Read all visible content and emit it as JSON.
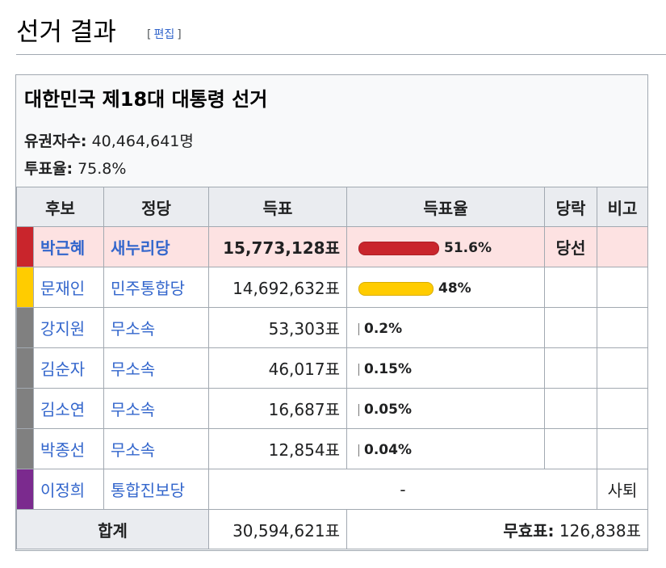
{
  "heading": {
    "title": "선거 결과",
    "edit_open": "[",
    "edit_label": "편집",
    "edit_close": "]"
  },
  "infobox": {
    "caption": "대한민국 제18대 대통령 선거",
    "eligible_label": "유권자수:",
    "eligible_value": "40,464,641명",
    "turnout_label": "투표율:",
    "turnout_value": "75.8%"
  },
  "table": {
    "headers": [
      "후보",
      "정당",
      "득표",
      "득표율",
      "당락",
      "비고"
    ],
    "rows": [
      {
        "color": "#c9252c",
        "candidate": "박근혜",
        "party": "새누리당",
        "votes": "15,773,128표",
        "pct": "51.6%",
        "share": 0.516,
        "bar_color": "#c9252c",
        "status": "당선",
        "note": "",
        "winner": true
      },
      {
        "color": "#ffcc00",
        "candidate": "문재인",
        "party": "민주통합당",
        "votes": "14,692,632표",
        "pct": "48%",
        "share": 0.48,
        "bar_color": "#ffcc00",
        "status": "",
        "note": "",
        "winner": false
      },
      {
        "color": "#808080",
        "candidate": "강지원",
        "party": "무소속",
        "votes": "53,303표",
        "pct": "0.2%",
        "share": 0.002,
        "bar_color": "#808080",
        "status": "",
        "note": "",
        "winner": false
      },
      {
        "color": "#808080",
        "candidate": "김순자",
        "party": "무소속",
        "votes": "46,017표",
        "pct": "0.15%",
        "share": 0.0015,
        "bar_color": "#808080",
        "status": "",
        "note": "",
        "winner": false
      },
      {
        "color": "#808080",
        "candidate": "김소연",
        "party": "무소속",
        "votes": "16,687표",
        "pct": "0.05%",
        "share": 0.0005,
        "bar_color": "#808080",
        "status": "",
        "note": "",
        "winner": false
      },
      {
        "color": "#808080",
        "candidate": "박종선",
        "party": "무소속",
        "votes": "12,854표",
        "pct": "0.04%",
        "share": 0.0004,
        "bar_color": "#808080",
        "status": "",
        "note": "",
        "winner": false
      }
    ],
    "withdrawn": {
      "color": "#7b2a8e",
      "candidate": "이정희",
      "party": "통합진보당",
      "dash": "-",
      "note": "사퇴"
    },
    "total": {
      "label": "합계",
      "votes": "30,594,621표",
      "invalid_label": "무효표:",
      "invalid_value": "126,838표"
    }
  }
}
